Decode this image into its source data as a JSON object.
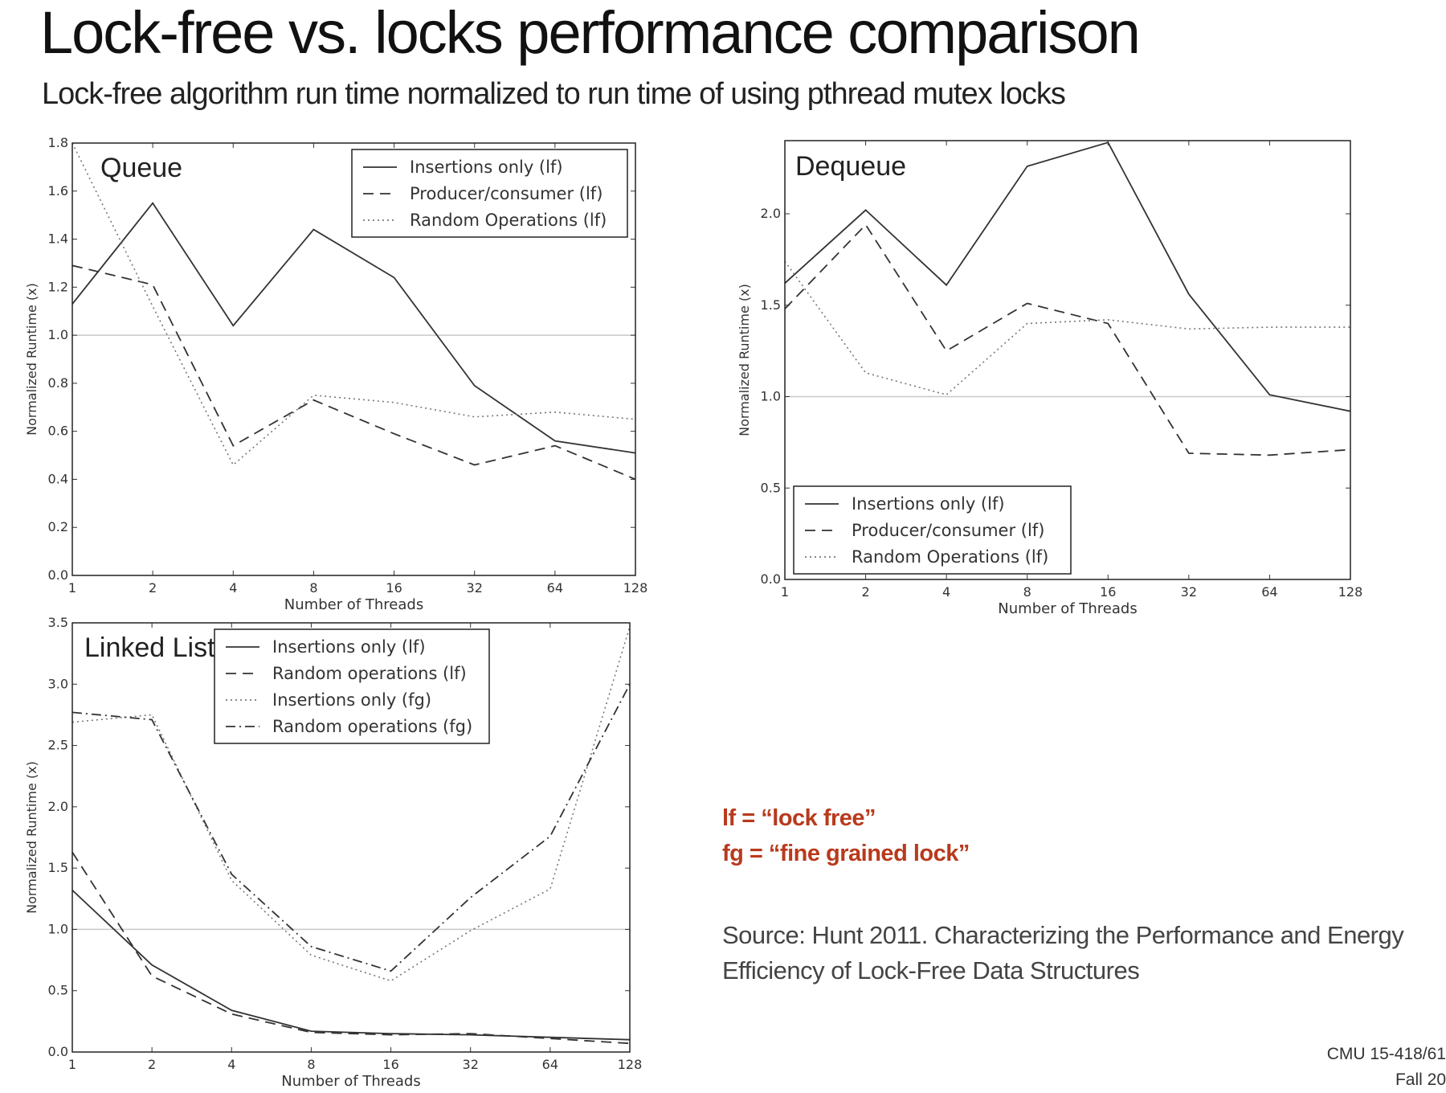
{
  "slide": {
    "title": "Lock-free vs. locks performance comparison",
    "subtitle": "Lock-free algorithm run time normalized to run time of using pthread mutex locks"
  },
  "notes": {
    "lf": "lf = “lock free”",
    "fg": "fg = “fine grained lock”"
  },
  "source": "Source: Hunt 2011. Characterizing the Performance and Energy Efficiency of Lock-Free Data Structures",
  "footer": {
    "course": "CMU 15-418/61",
    "term": "Fall 20"
  },
  "chart_data": [
    {
      "type": "line",
      "title": "Queue",
      "xlabel": "Number of Threads",
      "ylabel": "Normalized Runtime (x)",
      "x": [
        "1",
        "2",
        "4",
        "8",
        "16",
        "32",
        "64",
        "128"
      ],
      "ylim": [
        0,
        1.8
      ],
      "yticks": [
        "0.0",
        "0.2",
        "0.4",
        "0.6",
        "0.8",
        "1.0",
        "1.2",
        "1.4",
        "1.6",
        "1.8"
      ],
      "reference_line": 1.0,
      "legend_position": "top-right",
      "series": [
        {
          "name": "Insertions only (lf)",
          "style": "solid",
          "values": [
            1.13,
            1.55,
            1.04,
            1.44,
            1.24,
            0.79,
            0.56,
            0.51
          ]
        },
        {
          "name": "Producer/consumer (lf)",
          "style": "dashed",
          "values": [
            1.29,
            1.21,
            0.54,
            0.73,
            0.59,
            0.46,
            0.54,
            0.4
          ]
        },
        {
          "name": "Random Operations (lf)",
          "style": "dotted",
          "values": [
            1.8,
            1.12,
            0.46,
            0.75,
            0.72,
            0.66,
            0.68,
            0.65
          ]
        }
      ]
    },
    {
      "type": "line",
      "title": "Dequeue",
      "xlabel": "Number of Threads",
      "ylabel": "Normalized Runtime (x)",
      "x": [
        "1",
        "2",
        "4",
        "8",
        "16",
        "32",
        "64",
        "128"
      ],
      "ylim": [
        0,
        2.4
      ],
      "yticks": [
        "0.0",
        "0.5",
        "1.0",
        "1.5",
        "2.0"
      ],
      "reference_line": 1.0,
      "legend_position": "bottom-left",
      "series": [
        {
          "name": "Insertions only (lf)",
          "style": "solid",
          "values": [
            1.62,
            2.02,
            1.61,
            2.26,
            2.39,
            1.56,
            1.01,
            0.92
          ]
        },
        {
          "name": "Producer/consumer (lf)",
          "style": "dashed",
          "values": [
            1.48,
            1.94,
            1.25,
            1.51,
            1.4,
            0.69,
            0.68,
            0.71
          ]
        },
        {
          "name": "Random Operations (lf)",
          "style": "dotted",
          "values": [
            1.74,
            1.13,
            1.01,
            1.4,
            1.42,
            1.37,
            1.38,
            1.38
          ]
        }
      ]
    },
    {
      "type": "line",
      "title": "Linked List",
      "xlabel": "Number of Threads",
      "ylabel": "Normalized Runtime (x)",
      "x": [
        "1",
        "2",
        "4",
        "8",
        "16",
        "32",
        "64",
        "128"
      ],
      "ylim": [
        0,
        3.5
      ],
      "yticks": [
        "0.0",
        "0.5",
        "1.0",
        "1.5",
        "2.0",
        "2.5",
        "3.0",
        "3.5"
      ],
      "reference_line": 1.0,
      "legend_position": "top-right",
      "series": [
        {
          "name": "Insertions only (lf)",
          "style": "solid",
          "values": [
            1.32,
            0.71,
            0.34,
            0.17,
            0.15,
            0.14,
            0.12,
            0.1
          ]
        },
        {
          "name": "Random operations (lf)",
          "style": "dashed",
          "values": [
            1.63,
            0.62,
            0.31,
            0.16,
            0.14,
            0.15,
            0.11,
            0.07
          ]
        },
        {
          "name": "Insertions only (fg)",
          "style": "dotted",
          "values": [
            2.69,
            2.75,
            1.4,
            0.79,
            0.58,
            0.99,
            1.33,
            3.47
          ]
        },
        {
          "name": "Random operations (fg)",
          "style": "dashdot",
          "values": [
            2.77,
            2.71,
            1.45,
            0.86,
            0.66,
            1.26,
            1.76,
            3.0
          ]
        }
      ]
    }
  ]
}
